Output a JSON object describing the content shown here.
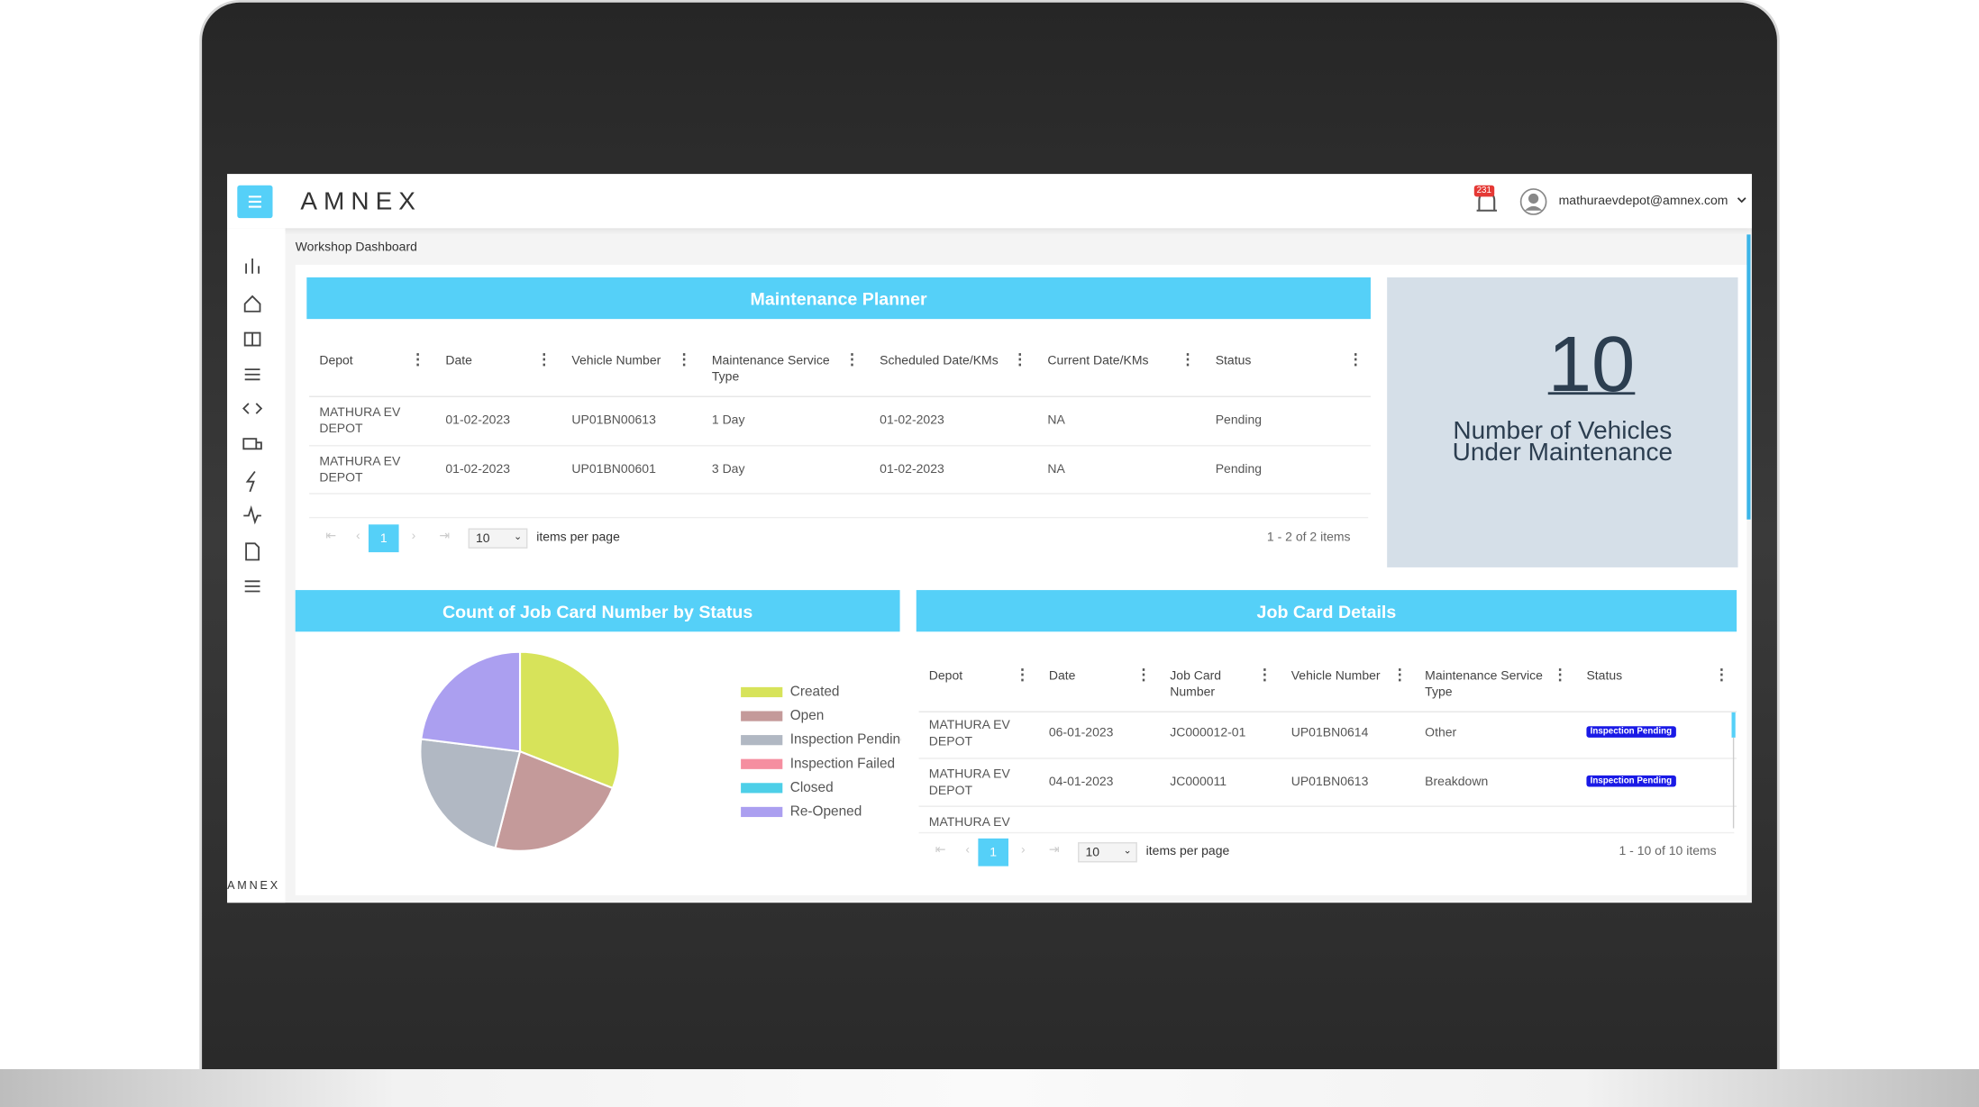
{
  "header": {
    "logo": "AMNEX",
    "notification_count": "231",
    "user": "mathuraevdepot@amnex.com"
  },
  "breadcrumb": "Workshop Dashboard",
  "maintenance_planner": {
    "title": "Maintenance Planner",
    "columns": [
      "Depot",
      "Date",
      "Vehicle Number",
      "Maintenance Service Type",
      "Scheduled Date/KMs",
      "Current Date/KMs",
      "Status"
    ],
    "rows": [
      [
        "MATHURA EV DEPOT",
        "01-02-2023",
        "UP01BN00613",
        "1 Day",
        "01-02-2023",
        "NA",
        "Pending"
      ],
      [
        "MATHURA EV DEPOT",
        "01-02-2023",
        "UP01BN00601",
        "3 Day",
        "01-02-2023",
        "NA",
        "Pending"
      ]
    ],
    "pager": {
      "page": "1",
      "page_size": "10",
      "per_page_label": "items per page",
      "summary": "1 - 2 of 2 items"
    }
  },
  "kpi": {
    "value": 10,
    "label": "Number of Vehicles Under Maintenance"
  },
  "chart_data": {
    "type": "pie",
    "title": "Count of Job Card Number by Status",
    "categories": [
      "Created",
      "Open",
      "Inspection Pending",
      "Inspection Failed",
      "Closed",
      "Re-Opened"
    ],
    "values": [
      31,
      23,
      23,
      0,
      0,
      23
    ],
    "colors": [
      "#d7e35a",
      "#c49a9a",
      "#b1b8c3",
      "#f58ea0",
      "#4dcfe8",
      "#ab9ff0"
    ]
  },
  "job_cards": {
    "title": "Job Card Details",
    "columns": [
      "Depot",
      "Date",
      "Job Card Number",
      "Vehicle Number",
      "Maintenance Service Type",
      "Status"
    ],
    "rows": [
      [
        "MATHURA EV DEPOT",
        "06-01-2023",
        "JC000012-01",
        "UP01BN0614",
        "Other",
        "Inspection Pending"
      ],
      [
        "MATHURA EV DEPOT",
        "04-01-2023",
        "JC000011",
        "UP01BN0613",
        "Breakdown",
        "Inspection Pending"
      ]
    ],
    "partial_row": [
      "MATHURA EV"
    ],
    "pager": {
      "page": "1",
      "page_size": "10",
      "per_page_label": "items per page",
      "summary": "1 - 10 of 10 items"
    }
  },
  "footer_logo": "AMNEX"
}
